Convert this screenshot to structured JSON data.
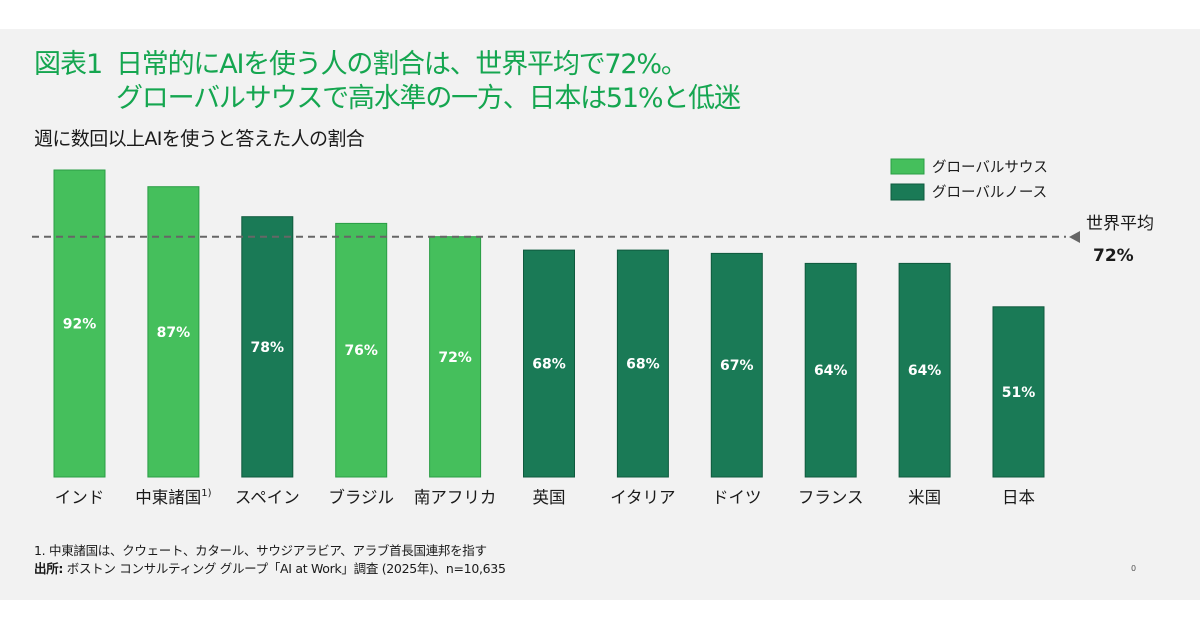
{
  "header": {
    "figure_label": "図表1",
    "title_line1": "日常的にAIを使う人の割合は、世界平均で72%。",
    "title_line2": "グローバルサウスで高水準の一方、日本は51%と低迷",
    "subtitle": "週に数回以上AIを使うと答えた人の割合"
  },
  "colors": {
    "title": "#15a650",
    "global_south": "#45bf5c",
    "global_north": "#1a7a56",
    "average_line": "#666666",
    "background": "#f2f2f2"
  },
  "chart_data": {
    "type": "bar",
    "title": "週に数回以上AIを使うと答えた人の割合",
    "xlabel": "",
    "ylabel": "",
    "ylim": [
      0,
      100
    ],
    "unit": "%",
    "grid": false,
    "legend_position": "top-right",
    "categories": [
      "インド",
      "中東諸国",
      "スペイン",
      "ブラジル",
      "南アフリカ",
      "英国",
      "イタリア",
      "ドイツ",
      "フランス",
      "米国",
      "日本"
    ],
    "category_superscripts": [
      "",
      "1)",
      "",
      "",
      "",
      "",
      "",
      "",
      "",
      "",
      ""
    ],
    "values": [
      92,
      87,
      78,
      76,
      72,
      68,
      68,
      67,
      64,
      64,
      51
    ],
    "groups": [
      "south",
      "south",
      "north",
      "south",
      "south",
      "north",
      "north",
      "north",
      "north",
      "north",
      "north"
    ],
    "data_labels": [
      "92%",
      "87%",
      "78%",
      "76%",
      "72%",
      "68%",
      "68%",
      "67%",
      "64%",
      "64%",
      "51%"
    ],
    "legend": [
      {
        "key": "south",
        "label": "グローバルサウス"
      },
      {
        "key": "north",
        "label": "グローバルノース"
      }
    ],
    "reference_line": {
      "value": 72,
      "label": "世界平均",
      "value_label": "72%",
      "style": "dashed"
    }
  },
  "footnotes": {
    "note1": "1. 中東諸国は、クウェート、カタール、サウジアラビア、アラブ首長国連邦を指す",
    "source_label": "出所:",
    "source_text": " ボストン コンサルティング グループ「AI at Work」調査 (2025年)、n=10,635"
  },
  "page_number": "0"
}
